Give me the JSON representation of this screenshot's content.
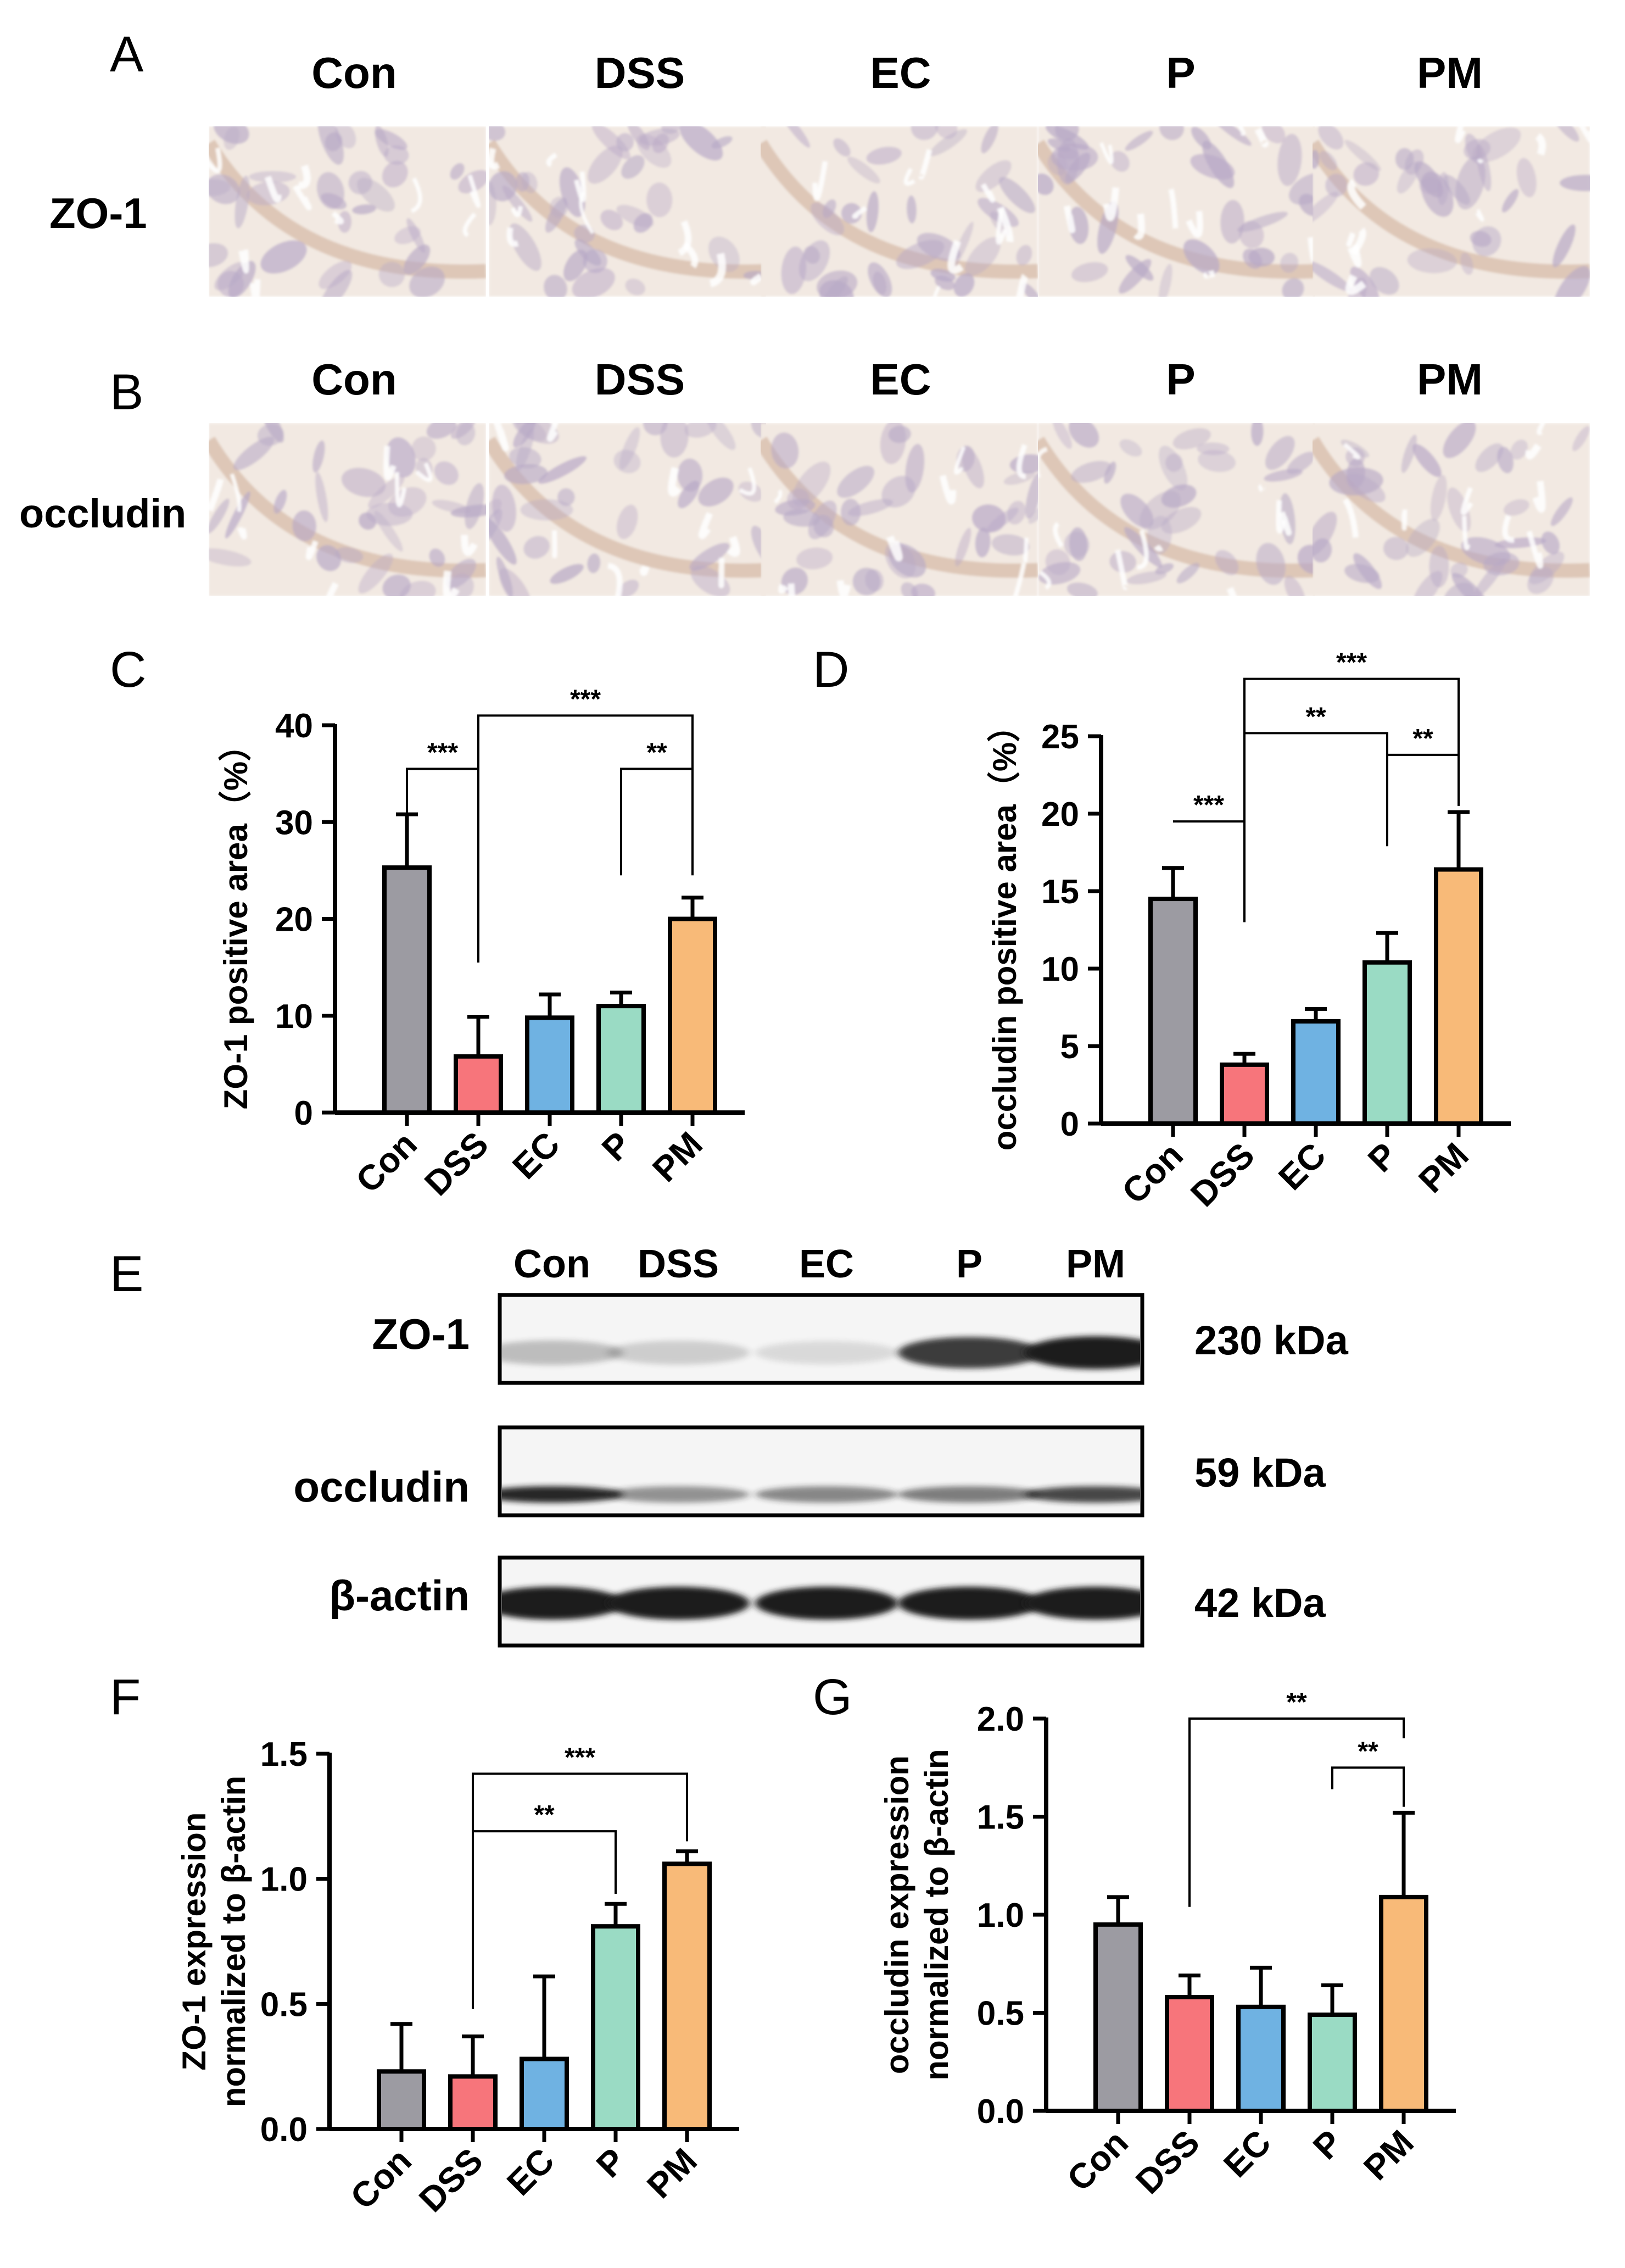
{
  "colors": {
    "Con": "#9C9BA2",
    "DSS": "#F7757B",
    "EC": "#6FB2E2",
    "P": "#9ADBC4",
    "PM": "#F8BA78",
    "ink": "#000000",
    "tissue_bg": "#F2E9E2",
    "tissue_crypt": "#B7A8C6",
    "tissue_stroma": "#DCC3B3",
    "blot_bg": "#F5F5F5",
    "blot_band": "#1E1E1E"
  },
  "panels": {
    "A": {
      "letter": "A",
      "row_label": "ZO-1",
      "groups": [
        "Con",
        "DSS",
        "EC",
        "P",
        "PM"
      ],
      "tiles": [
        {
          "group": "Con",
          "image": "ZO-1 IHC micrograph, Con"
        },
        {
          "group": "DSS",
          "image": "ZO-1 IHC micrograph, DSS"
        },
        {
          "group": "EC",
          "image": "ZO-1 IHC micrograph, EC"
        },
        {
          "group": "P",
          "image": "ZO-1 IHC micrograph, P"
        },
        {
          "group": "PM",
          "image": "ZO-1 IHC micrograph, PM"
        }
      ]
    },
    "B": {
      "letter": "B",
      "row_label": "occludin",
      "groups": [
        "Con",
        "DSS",
        "EC",
        "P",
        "PM"
      ],
      "tiles": [
        {
          "group": "Con",
          "image": "occludin IHC micrograph, Con"
        },
        {
          "group": "DSS",
          "image": "occludin IHC micrograph, DSS"
        },
        {
          "group": "EC",
          "image": "occludin IHC micrograph, EC"
        },
        {
          "group": "P",
          "image": "occludin IHC micrograph, P"
        },
        {
          "group": "PM",
          "image": "occludin IHC micrograph, PM"
        }
      ]
    },
    "E": {
      "letter": "E",
      "lanes": [
        "Con",
        "DSS",
        "EC",
        "P",
        "PM"
      ],
      "blots": [
        {
          "label": "ZO-1",
          "mw": "230 kDa",
          "intensity": [
            0.25,
            0.18,
            0.12,
            0.85,
            1.0
          ]
        },
        {
          "label": "occludin",
          "mw": "59 kDa",
          "intensity": [
            0.95,
            0.45,
            0.5,
            0.55,
            0.8
          ]
        },
        {
          "label": "β-actin",
          "mw": "42 kDa",
          "intensity": [
            1.0,
            1.0,
            1.0,
            1.0,
            1.0
          ]
        }
      ]
    }
  },
  "chart_data": [
    {
      "panel": "C",
      "type": "bar",
      "title": "",
      "ylabel": "ZO-1 positive area（%）",
      "ylabel_lines": [
        "ZO-1 positive area（%）"
      ],
      "xlabel": "",
      "categories": [
        "Con",
        "DSS",
        "EC",
        "P",
        "PM"
      ],
      "values": [
        25.3,
        5.8,
        9.8,
        11.0,
        20.0
      ],
      "errors": [
        5.5,
        4.1,
        2.4,
        1.4,
        2.2
      ],
      "ylim": [
        0,
        40
      ],
      "yticks": [
        0,
        10,
        20,
        30,
        40
      ],
      "ytick_labels": [
        "0",
        "10",
        "20",
        "30",
        "40"
      ],
      "grid": false,
      "brackets": [
        {
          "from": 0,
          "to": 1,
          "stars": "***",
          "left_drop_to": 30.8,
          "right_drop_to": 15.5,
          "y": 35.5
        },
        {
          "from": 3,
          "to": 4,
          "stars": "**",
          "left_drop_to": 24.5,
          "right_drop_to": 24.5,
          "y": 35.5
        },
        {
          "from": 1,
          "to": 4,
          "stars": "***",
          "left_drop_to": 35.5,
          "right_drop_to": 35.5,
          "y": 41.0
        }
      ]
    },
    {
      "panel": "D",
      "type": "bar",
      "title": "",
      "ylabel": "occludin positive area（%）",
      "ylabel_lines": [
        "occludin positive area（%）"
      ],
      "xlabel": "",
      "categories": [
        "Con",
        "DSS",
        "EC",
        "P",
        "PM"
      ],
      "values": [
        14.5,
        3.8,
        6.6,
        10.4,
        16.4
      ],
      "errors": [
        2.0,
        0.7,
        0.8,
        1.9,
        3.7
      ],
      "ylim": [
        0,
        25
      ],
      "yticks": [
        0,
        5,
        10,
        15,
        20,
        25
      ],
      "ytick_labels": [
        "0",
        "5",
        "10",
        "15",
        "20",
        "25"
      ],
      "grid": false,
      "brackets": [
        {
          "from": 0,
          "to": 1,
          "stars": "***",
          "left_drop_to": 19.5,
          "right_drop_to": 13.0,
          "y": 19.5
        },
        {
          "from": 3,
          "to": 4,
          "stars": "**",
          "left_drop_to": 23.0,
          "right_drop_to": 23.0,
          "y": 23.8
        },
        {
          "from": 1,
          "to": 3,
          "stars": "**",
          "left_drop_to": 13.0,
          "right_drop_to": 17.9,
          "y": 25.2
        },
        {
          "from": 1,
          "to": 4,
          "stars": "***",
          "left_drop_to": 25.2,
          "right_drop_to": 20.5,
          "y": 28.7
        }
      ]
    },
    {
      "panel": "F",
      "type": "bar",
      "title": "",
      "ylabel": "ZO-1 expression normalized to β-actin",
      "ylabel_lines": [
        "ZO-1 expression",
        "normalized to β-actin"
      ],
      "xlabel": "",
      "categories": [
        "Con",
        "DSS",
        "EC",
        "P",
        "PM"
      ],
      "values": [
        0.23,
        0.21,
        0.28,
        0.81,
        1.06
      ],
      "errors": [
        0.19,
        0.16,
        0.33,
        0.09,
        0.05
      ],
      "ylim": [
        0,
        1.5
      ],
      "yticks": [
        0,
        0.5,
        1.0,
        1.5
      ],
      "ytick_labels": [
        "0.0",
        "0.5",
        "1.0",
        "1.5"
      ],
      "grid": false,
      "brackets": [
        {
          "from": 1,
          "to": 3,
          "stars": "**",
          "left_drop_to": 0.48,
          "right_drop_to": 0.94,
          "y": 1.19
        },
        {
          "from": 1,
          "to": 4,
          "stars": "***",
          "left_drop_to": 1.19,
          "right_drop_to": 1.15,
          "y": 1.42
        }
      ]
    },
    {
      "panel": "G",
      "type": "bar",
      "title": "",
      "ylabel": "occludin expression normalized to β-actin",
      "ylabel_lines": [
        "occludin expression",
        "normalized to β-actin"
      ],
      "xlabel": "",
      "categories": [
        "Con",
        "DSS",
        "EC",
        "P",
        "PM"
      ],
      "values": [
        0.95,
        0.58,
        0.53,
        0.49,
        1.09
      ],
      "errors": [
        0.14,
        0.11,
        0.2,
        0.15,
        0.43
      ],
      "ylim": [
        0,
        2.0
      ],
      "yticks": [
        0,
        0.5,
        1.0,
        1.5,
        2.0
      ],
      "ytick_labels": [
        "0.0",
        "0.5",
        "1.0",
        "1.5",
        "2.0"
      ],
      "grid": false,
      "brackets": [
        {
          "from": 3,
          "to": 4,
          "stars": "**",
          "left_drop_to": 1.64,
          "right_drop_to": 1.55,
          "y": 1.75
        },
        {
          "from": 1,
          "to": 4,
          "stars": "**",
          "left_drop_to": 1.04,
          "right_drop_to": 1.9,
          "y": 2.0
        }
      ]
    }
  ]
}
